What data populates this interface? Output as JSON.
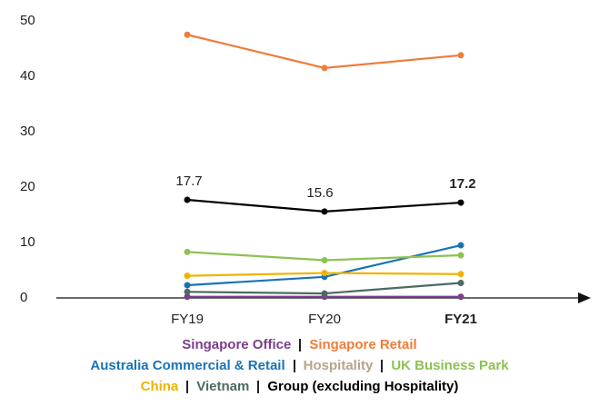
{
  "chart_data": {
    "type": "line",
    "categories": [
      "FY19",
      "FY20",
      "FY21"
    ],
    "ylim": [
      0,
      50
    ],
    "yticks": [
      0,
      10,
      20,
      30,
      40,
      50
    ],
    "series": [
      {
        "name": "Singapore Office",
        "color": "#7b3f8c",
        "values": [
          0.2,
          0.2,
          0.2
        ]
      },
      {
        "name": "Singapore Retail",
        "color": "#ef7d3a",
        "values": [
          47.5,
          41.5,
          43.8
        ]
      },
      {
        "name": "Australia Commercial & Retail",
        "color": "#1a73b5",
        "values": [
          2.3,
          3.8,
          9.5
        ]
      },
      {
        "name": "Hospitality",
        "color": "#b5a58a",
        "values": [
          null,
          null,
          null
        ]
      },
      {
        "name": "UK Business Park",
        "color": "#8dc153",
        "values": [
          8.3,
          6.8,
          7.7
        ]
      },
      {
        "name": "China",
        "color": "#f0b400",
        "values": [
          4.0,
          4.5,
          4.3
        ]
      },
      {
        "name": "Vietnam",
        "color": "#4d6a64",
        "values": [
          1.1,
          0.8,
          2.7
        ]
      },
      {
        "name": "Group (excluding Hospitality)",
        "color": "#000000",
        "values": [
          17.7,
          15.6,
          17.2
        ]
      }
    ]
  }
}
